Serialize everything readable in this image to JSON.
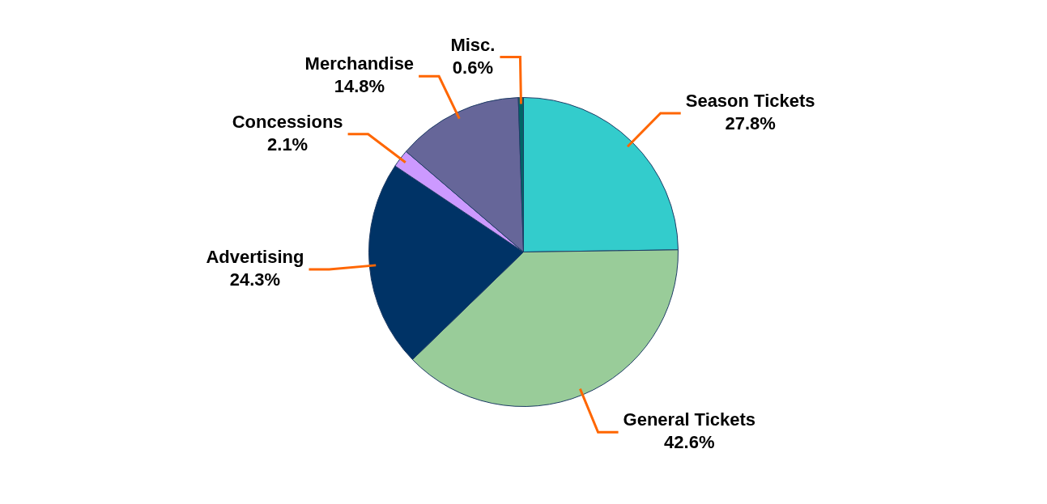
{
  "chart_data": {
    "type": "pie",
    "categories": [
      "Season Tickets",
      "General Tickets",
      "Advertising",
      "Concessions",
      "Merchandise",
      "Misc."
    ],
    "values": [
      27.8,
      42.6,
      24.3,
      2.1,
      14.8,
      0.6
    ],
    "value_labels": [
      "27.8%",
      "42.6%",
      "24.3%",
      "2.1%",
      "14.8%",
      "0.6%"
    ],
    "colors": [
      "#33cccc",
      "#99cc99",
      "#003366",
      "#cc99ff",
      "#666699",
      "#006666"
    ],
    "legend": false
  }
}
